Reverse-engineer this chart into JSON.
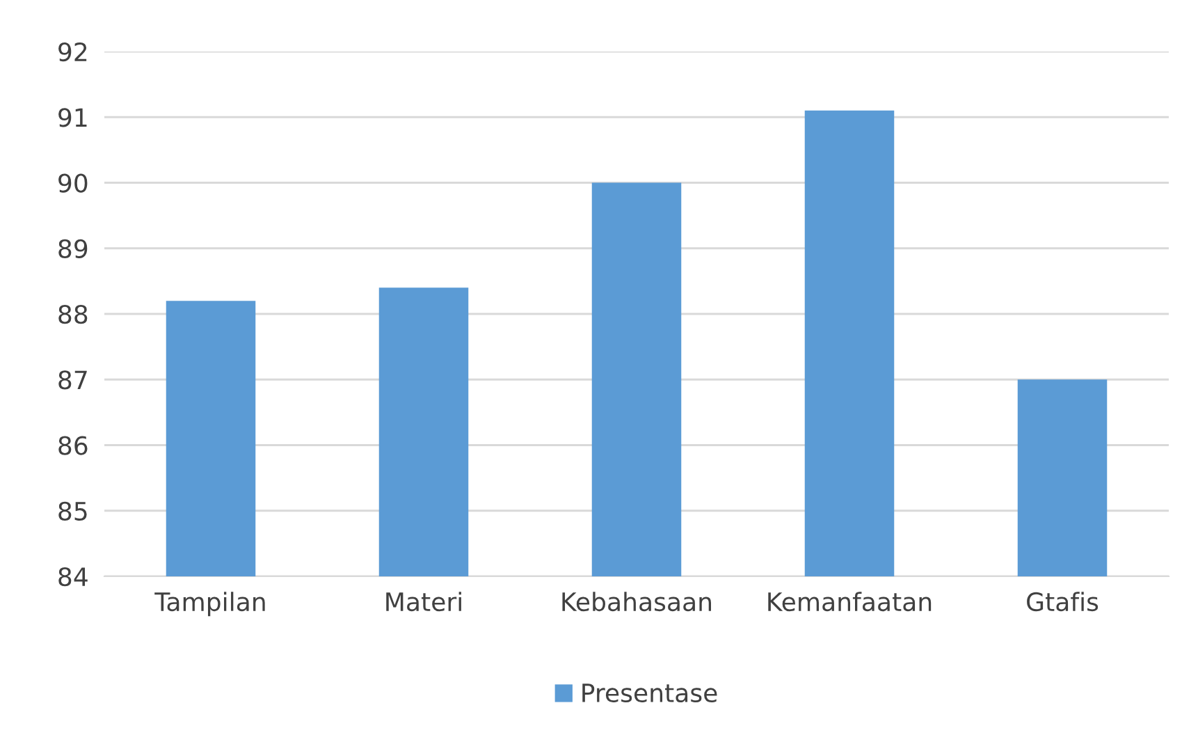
{
  "chart_data": {
    "type": "bar",
    "categories": [
      "Tampilan",
      "Materi",
      "Kebahasaan",
      "Kemanfaatan",
      "Gtafis"
    ],
    "series": [
      {
        "name": "Presentase",
        "color": "#5b9bd5",
        "values": [
          88.2,
          88.4,
          90.0,
          91.1,
          87.0
        ]
      }
    ],
    "ylim": [
      84,
      92
    ],
    "yticks": [
      84,
      85,
      86,
      87,
      88,
      89,
      90,
      91,
      92
    ],
    "grid": "y",
    "legend": "bottom"
  }
}
